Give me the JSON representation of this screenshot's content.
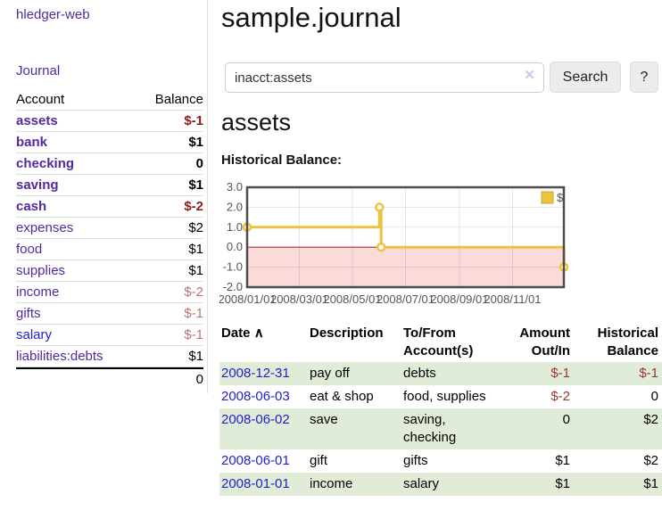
{
  "app": {
    "brand": "hledger-web",
    "nav_journal": "Journal"
  },
  "colors": {
    "link_purple": "#512a9d",
    "link_blue": "#2222cc",
    "negative_strong": "#8f1b1b",
    "negative_soft": "#b87575",
    "negative_txn": "#9a3434",
    "stripe_green": "#e0ecd8",
    "series_gold": "#edc240",
    "negative_region_pink": "#fbdada",
    "zero_line_red": "#a03434",
    "chart_border_gray": "#4d4d4d"
  },
  "sidebar": {
    "headers": {
      "account": "Account",
      "balance": "Balance"
    },
    "accounts": [
      {
        "label": "assets",
        "depth": 1,
        "bold": true,
        "blue": false,
        "balance": "$-1",
        "balance_class": "neg-strong"
      },
      {
        "label": "bank",
        "depth": 2,
        "bold": true,
        "blue": false,
        "balance": "$1",
        "balance_class": ""
      },
      {
        "label": "checking",
        "depth": 3,
        "bold": true,
        "blue": false,
        "balance": "0",
        "balance_class": ""
      },
      {
        "label": "saving",
        "depth": 3,
        "bold": true,
        "blue": false,
        "balance": "$1",
        "balance_class": ""
      },
      {
        "label": "cash",
        "depth": 2,
        "bold": true,
        "blue": false,
        "balance": "$-2",
        "balance_class": "neg-strong"
      },
      {
        "label": "expenses",
        "depth": 1,
        "bold": false,
        "blue": false,
        "balance": "$2",
        "balance_class": ""
      },
      {
        "label": "food",
        "depth": 2,
        "bold": false,
        "blue": false,
        "balance": "$1",
        "balance_class": ""
      },
      {
        "label": "supplies",
        "depth": 2,
        "bold": false,
        "blue": false,
        "balance": "$1",
        "balance_class": ""
      },
      {
        "label": "income",
        "depth": 1,
        "bold": false,
        "blue": false,
        "balance": "$-2",
        "balance_class": "neg-soft"
      },
      {
        "label": "gifts",
        "depth": 2,
        "bold": false,
        "blue": false,
        "balance": "$-1",
        "balance_class": "neg-soft"
      },
      {
        "label": "salary",
        "depth": 2,
        "bold": false,
        "blue": true,
        "balance": "$-1",
        "balance_class": "neg-soft"
      },
      {
        "label": "liabilities:debts",
        "depth": 1,
        "bold": false,
        "blue": false,
        "balance": "$1",
        "balance_class": ""
      }
    ],
    "total": "0"
  },
  "main": {
    "title": "sample.journal",
    "search": {
      "value": "inacct:assets",
      "clear_icon": "×",
      "button": "Search",
      "help_button": "?"
    },
    "account_heading": "assets",
    "chart_label": "Historical Balance:"
  },
  "chart_data": {
    "type": "line",
    "step": true,
    "title": "Historical Balance of assets",
    "legend": {
      "label": "$",
      "position": "top-right"
    },
    "ylim": [
      -2,
      3
    ],
    "x_range_days": [
      0,
      364
    ],
    "grid": true,
    "y_ticks": [
      {
        "label": "3.0",
        "value": 3
      },
      {
        "label": "2.0",
        "value": 2
      },
      {
        "label": "1.0",
        "value": 1
      },
      {
        "label": "0.0",
        "value": 0
      },
      {
        "label": "-1.0",
        "value": -1
      },
      {
        "label": "-2.0",
        "value": -2
      }
    ],
    "x_ticks": [
      {
        "label": "2008/01/01",
        "day": 0
      },
      {
        "label": "2008/03/01",
        "day": 60
      },
      {
        "label": "2008/05/01",
        "day": 121
      },
      {
        "label": "2008/07/01",
        "day": 182
      },
      {
        "label": "2008/09/01",
        "day": 244
      },
      {
        "label": "2008/11/01",
        "day": 305
      }
    ],
    "series": [
      {
        "name": "$",
        "color": "#edc240",
        "points": [
          {
            "date": "2008-01-01",
            "day": 0,
            "value": 1
          },
          {
            "date": "2008-06-01",
            "day": 152,
            "value": 2
          },
          {
            "date": "2008-06-03",
            "day": 154,
            "value": 0
          },
          {
            "date": "2008-12-31",
            "day": 364,
            "value": -1
          }
        ]
      }
    ]
  },
  "transactions": {
    "headers": {
      "date": "Date",
      "sort_icon": "∧",
      "description": "Description",
      "tofrom": "To/From Account(s)",
      "amount": "Amount Out/In",
      "balance": "Historical Balance"
    },
    "rows": [
      {
        "date": "2008-12-31",
        "description": "pay off",
        "accounts": "debts",
        "amount": "$-1",
        "amount_negative": true,
        "balance": "$-1",
        "balance_negative": true,
        "striped": true
      },
      {
        "date": "2008-06-03",
        "description": "eat & shop",
        "accounts": "food, supplies",
        "amount": "$-2",
        "amount_negative": true,
        "balance": "0",
        "balance_negative": false,
        "striped": false
      },
      {
        "date": "2008-06-02",
        "description": "save",
        "accounts": "saving, checking",
        "amount": "0",
        "amount_negative": false,
        "balance": "$2",
        "balance_negative": false,
        "striped": true
      },
      {
        "date": "2008-06-01",
        "description": "gift",
        "accounts": "gifts",
        "amount": "$1",
        "amount_negative": false,
        "balance": "$2",
        "balance_negative": false,
        "striped": false
      },
      {
        "date": "2008-01-01",
        "description": "income",
        "accounts": "salary",
        "amount": "$1",
        "amount_negative": false,
        "balance": "$1",
        "balance_negative": false,
        "striped": true
      }
    ]
  }
}
